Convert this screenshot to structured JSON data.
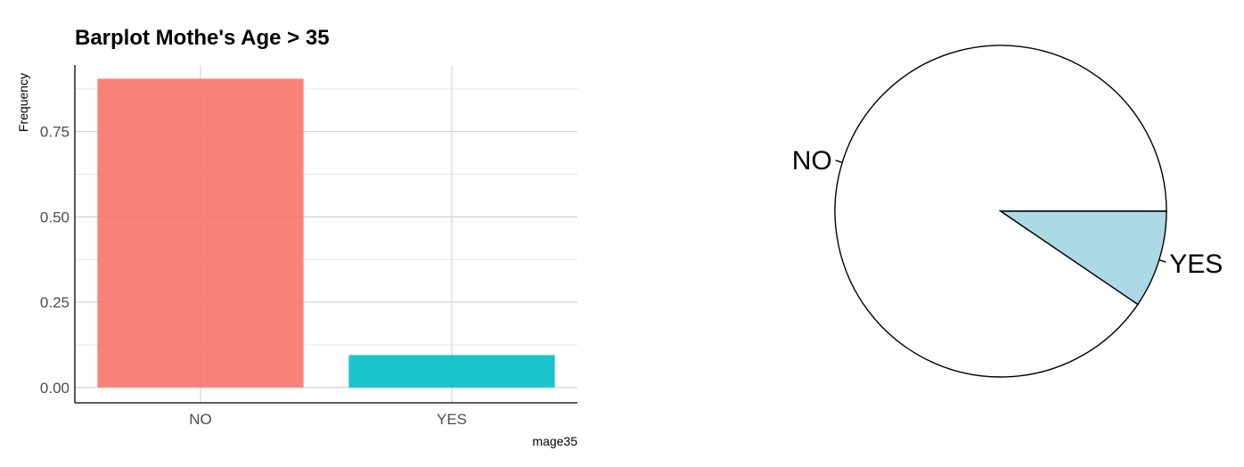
{
  "chart_data": [
    {
      "type": "bar",
      "title": "Barplot Mothe's Age > 35",
      "xlabel": "mage35",
      "ylabel": "Frequency",
      "categories": [
        "NO",
        "YES"
      ],
      "values": [
        0.905,
        0.095
      ],
      "colors": [
        "#F8766D",
        "#00BFC4"
      ],
      "ylim": [
        -0.045,
        0.945
      ],
      "yticks": [
        0.0,
        0.25,
        0.5,
        0.75
      ],
      "ytick_labels": [
        "0.00",
        "0.25",
        "0.50",
        "0.75"
      ],
      "grid": true
    },
    {
      "type": "pie",
      "categories": [
        "NO",
        "YES"
      ],
      "values": [
        0.905,
        0.095
      ],
      "colors": [
        "#FFFFFF",
        "#ADD8E6"
      ],
      "grid": false
    }
  ]
}
